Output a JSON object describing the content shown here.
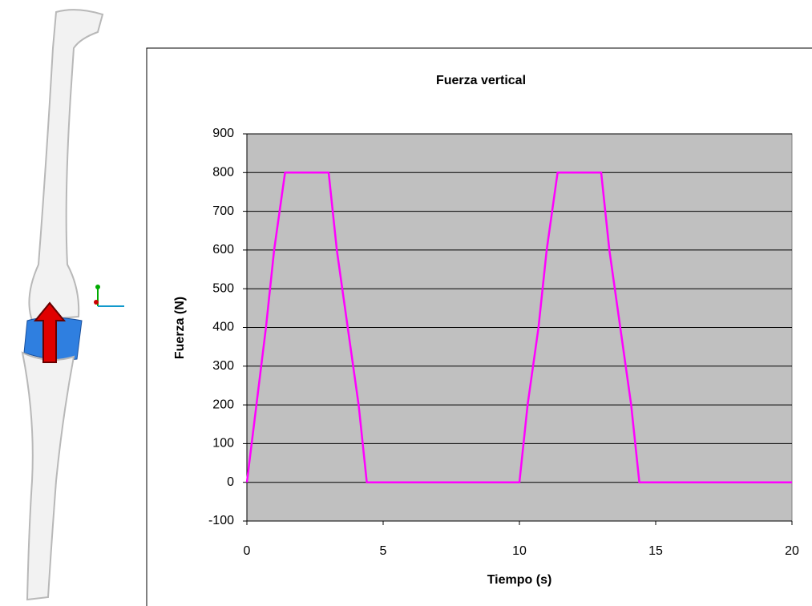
{
  "chart_data": {
    "type": "line",
    "title": "Fuerza vertical",
    "x_label": "Tiempo (s)",
    "y_label": "Fuerza (N)",
    "x": [
      0,
      0.7,
      1.0,
      1.4,
      3.0,
      3.3,
      4.1,
      4.4,
      10.0,
      10.3,
      10.7,
      11.0,
      11.4,
      13.0,
      13.3,
      14.1,
      14.4,
      20
    ],
    "values": [
      0,
      400,
      600,
      800,
      800,
      600,
      200,
      0,
      0,
      200,
      400,
      600,
      800,
      800,
      600,
      200,
      0,
      0
    ],
    "color": "#ff00ff",
    "xlim": [
      0,
      20
    ],
    "xticks": [
      0,
      5,
      10,
      15,
      20
    ],
    "ylim": [
      -100,
      900
    ],
    "yticks": [
      -100,
      0,
      100,
      200,
      300,
      400,
      500,
      600,
      700,
      800,
      900
    ],
    "grid": true,
    "plot_background": "#c0c0c0"
  }
}
